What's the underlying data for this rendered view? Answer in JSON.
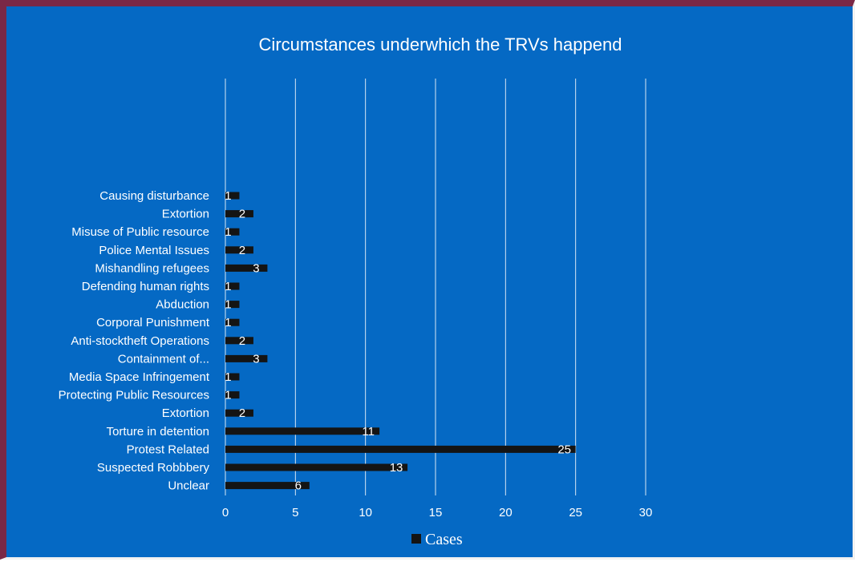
{
  "chart_data": {
    "type": "bar",
    "orientation": "horizontal",
    "title": "Circumstances underwhich the TRVs happend",
    "categories": [
      "Causing disturbance",
      "Extortion",
      "Misuse of Public resource",
      "Police Mental Issues",
      "Mishandling refugees",
      "Defending human rights",
      "Abduction",
      "Corporal Punishment",
      "Anti-stocktheft Operations",
      "Containment of...",
      "Media Space Infringement",
      "Protecting Public Resources",
      "Extortion",
      "Torture in detention",
      "Protest Related",
      "Suspected Robbbery",
      "Unclear"
    ],
    "series": [
      {
        "name": "Cases",
        "values": [
          1,
          2,
          1,
          2,
          3,
          1,
          1,
          1,
          2,
          3,
          1,
          1,
          2,
          11,
          25,
          13,
          6
        ]
      }
    ],
    "xlim": [
      0,
      30
    ],
    "xticks": [
      "0",
      "5",
      "10",
      "15",
      "20",
      "25",
      "30"
    ],
    "grid": "vertical",
    "legend_position": "bottom",
    "colors": {
      "background": "#0569c4",
      "bar": "#141414",
      "gridline": "#d8e6f5",
      "text": "#ffffff",
      "border": "#7a2846"
    }
  }
}
